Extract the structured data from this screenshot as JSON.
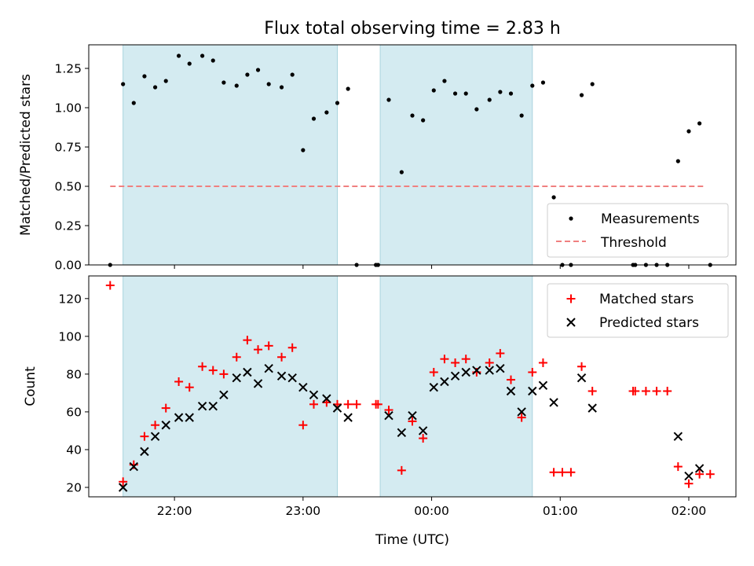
{
  "chart_data": [
    {
      "type": "scatter",
      "title": "Flux total observing time = 2.83 h",
      "xlabel": "",
      "ylabel": "Matched/Predicted stars",
      "xlim": [
        "21:20",
        "02:22"
      ],
      "ylim": [
        0,
        1.4
      ],
      "yticks": [
        "0.00",
        "0.25",
        "0.50",
        "0.75",
        "1.00",
        "1.25"
      ],
      "grid": false,
      "legend_position": "lower-right",
      "shaded_intervals": [
        [
          "21:36",
          "23:16"
        ],
        [
          "23:36",
          "00:47"
        ]
      ],
      "threshold": {
        "name": "Threshold",
        "value": 0.5,
        "x_range": [
          "21:30",
          "02:08"
        ],
        "color": "#f08080"
      },
      "series": [
        {
          "name": "Measurements",
          "color": "#000000",
          "points": [
            [
              "21:30",
              0.0
            ],
            [
              "21:36",
              1.15
            ],
            [
              "21:41",
              1.03
            ],
            [
              "21:46",
              1.2
            ],
            [
              "21:51",
              1.13
            ],
            [
              "21:56",
              1.17
            ],
            [
              "22:02",
              1.33
            ],
            [
              "22:07",
              1.28
            ],
            [
              "22:13",
              1.33
            ],
            [
              "22:18",
              1.3
            ],
            [
              "22:23",
              1.16
            ],
            [
              "22:29",
              1.14
            ],
            [
              "22:34",
              1.21
            ],
            [
              "22:39",
              1.24
            ],
            [
              "22:44",
              1.15
            ],
            [
              "22:50",
              1.13
            ],
            [
              "22:55",
              1.21
            ],
            [
              "23:00",
              0.73
            ],
            [
              "23:05",
              0.93
            ],
            [
              "23:11",
              0.97
            ],
            [
              "23:16",
              1.03
            ],
            [
              "23:21",
              1.12
            ],
            [
              "23:25",
              0.0
            ],
            [
              "23:34",
              0.0
            ],
            [
              "23:35",
              0.0
            ],
            [
              "23:40",
              1.05
            ],
            [
              "23:46",
              0.59
            ],
            [
              "23:51",
              0.95
            ],
            [
              "23:56",
              0.92
            ],
            [
              "00:01",
              1.11
            ],
            [
              "00:06",
              1.17
            ],
            [
              "00:11",
              1.09
            ],
            [
              "00:16",
              1.09
            ],
            [
              "00:21",
              0.99
            ],
            [
              "00:27",
              1.05
            ],
            [
              "00:32",
              1.1
            ],
            [
              "00:37",
              1.09
            ],
            [
              "00:42",
              0.95
            ],
            [
              "00:47",
              1.14
            ],
            [
              "00:52",
              1.16
            ],
            [
              "00:57",
              0.43
            ],
            [
              "01:01",
              0.0
            ],
            [
              "01:05",
              0.0
            ],
            [
              "01:10",
              1.08
            ],
            [
              "01:15",
              1.15
            ],
            [
              "01:34",
              0.0
            ],
            [
              "01:35",
              0.0
            ],
            [
              "01:40",
              0.0
            ],
            [
              "01:45",
              0.0
            ],
            [
              "01:50",
              0.0
            ],
            [
              "01:55",
              0.66
            ],
            [
              "02:00",
              0.85
            ],
            [
              "02:05",
              0.9
            ],
            [
              "02:10",
              0.0
            ]
          ]
        }
      ]
    },
    {
      "type": "scatter",
      "title": "",
      "xlabel": "Time (UTC)",
      "ylabel": "Count",
      "xlim": [
        "21:20",
        "02:22"
      ],
      "ylim": [
        15,
        132
      ],
      "xticks": [
        "22:00",
        "23:00",
        "00:00",
        "01:00",
        "02:00"
      ],
      "yticks": [
        "20",
        "40",
        "60",
        "80",
        "100",
        "120"
      ],
      "grid": false,
      "legend_position": "upper-right",
      "shaded_intervals": [
        [
          "21:36",
          "23:16"
        ],
        [
          "23:36",
          "00:47"
        ]
      ],
      "series": [
        {
          "name": "Matched stars",
          "marker": "plus",
          "color": "#ff0000",
          "points": [
            [
              "21:30",
              127
            ],
            [
              "21:36",
              23
            ],
            [
              "21:41",
              32
            ],
            [
              "21:46",
              47
            ],
            [
              "21:51",
              53
            ],
            [
              "21:56",
              62
            ],
            [
              "22:02",
              76
            ],
            [
              "22:07",
              73
            ],
            [
              "22:13",
              84
            ],
            [
              "22:18",
              82
            ],
            [
              "22:23",
              80
            ],
            [
              "22:29",
              89
            ],
            [
              "22:34",
              98
            ],
            [
              "22:39",
              93
            ],
            [
              "22:44",
              95
            ],
            [
              "22:50",
              89
            ],
            [
              "22:55",
              94
            ],
            [
              "23:00",
              53
            ],
            [
              "23:05",
              64
            ],
            [
              "23:11",
              65
            ],
            [
              "23:16",
              64
            ],
            [
              "23:21",
              64
            ],
            [
              "23:25",
              64
            ],
            [
              "23:34",
              64
            ],
            [
              "23:35",
              64
            ],
            [
              "23:40",
              61
            ],
            [
              "23:46",
              29
            ],
            [
              "23:51",
              55
            ],
            [
              "23:56",
              46
            ],
            [
              "00:01",
              81
            ],
            [
              "00:06",
              88
            ],
            [
              "00:11",
              86
            ],
            [
              "00:16",
              88
            ],
            [
              "00:21",
              81
            ],
            [
              "00:27",
              86
            ],
            [
              "00:32",
              91
            ],
            [
              "00:37",
              77
            ],
            [
              "00:42",
              57
            ],
            [
              "00:47",
              81
            ],
            [
              "00:52",
              86
            ],
            [
              "00:57",
              28
            ],
            [
              "01:01",
              28
            ],
            [
              "01:05",
              28
            ],
            [
              "01:10",
              84
            ],
            [
              "01:15",
              71
            ],
            [
              "01:34",
              71
            ],
            [
              "01:35",
              71
            ],
            [
              "01:40",
              71
            ],
            [
              "01:45",
              71
            ],
            [
              "01:50",
              71
            ],
            [
              "01:55",
              31
            ],
            [
              "02:00",
              22
            ],
            [
              "02:05",
              27
            ],
            [
              "02:10",
              27
            ]
          ]
        },
        {
          "name": "Predicted stars",
          "marker": "x",
          "color": "#000000",
          "points": [
            [
              "21:36",
              20
            ],
            [
              "21:41",
              31
            ],
            [
              "21:46",
              39
            ],
            [
              "21:51",
              47
            ],
            [
              "21:56",
              53
            ],
            [
              "22:02",
              57
            ],
            [
              "22:07",
              57
            ],
            [
              "22:13",
              63
            ],
            [
              "22:18",
              63
            ],
            [
              "22:23",
              69
            ],
            [
              "22:29",
              78
            ],
            [
              "22:34",
              81
            ],
            [
              "22:39",
              75
            ],
            [
              "22:44",
              83
            ],
            [
              "22:50",
              79
            ],
            [
              "22:55",
              78
            ],
            [
              "23:00",
              73
            ],
            [
              "23:05",
              69
            ],
            [
              "23:11",
              67
            ],
            [
              "23:16",
              62
            ],
            [
              "23:21",
              57
            ],
            [
              "23:40",
              58
            ],
            [
              "23:46",
              49
            ],
            [
              "23:51",
              58
            ],
            [
              "23:56",
              50
            ],
            [
              "00:01",
              73
            ],
            [
              "00:06",
              76
            ],
            [
              "00:11",
              79
            ],
            [
              "00:16",
              81
            ],
            [
              "00:21",
              82
            ],
            [
              "00:27",
              82
            ],
            [
              "00:32",
              83
            ],
            [
              "00:37",
              71
            ],
            [
              "00:42",
              60
            ],
            [
              "00:47",
              71
            ],
            [
              "00:52",
              74
            ],
            [
              "00:57",
              65
            ],
            [
              "01:10",
              78
            ],
            [
              "01:15",
              62
            ],
            [
              "01:55",
              47
            ],
            [
              "02:00",
              26
            ],
            [
              "02:05",
              30
            ]
          ]
        }
      ]
    }
  ]
}
